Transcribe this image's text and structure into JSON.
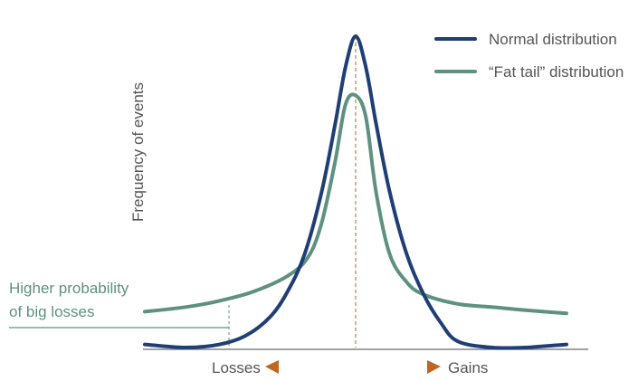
{
  "chart_data": {
    "type": "line",
    "title": "",
    "xlabel": "",
    "ylabel": "Frequency of events",
    "grid": false,
    "legend_position": "top-right",
    "x_axis_labels": {
      "left": "Losses",
      "right": "Gains"
    },
    "annotation": {
      "line1": "Higher probability",
      "line2": "of big losses"
    },
    "series": [
      {
        "name": "Normal distribution",
        "color": "#1f3f74",
        "values": [
          [
            -3.1,
            0.01
          ],
          [
            -2.5,
            0.0
          ],
          [
            -2.0,
            0.01
          ],
          [
            -1.6,
            0.04
          ],
          [
            -1.25,
            0.1
          ],
          [
            -1.0,
            0.18
          ],
          [
            -0.75,
            0.3
          ],
          [
            -0.5,
            0.5
          ],
          [
            -0.3,
            0.72
          ],
          [
            -0.15,
            0.9
          ],
          [
            0.0,
            1.0
          ],
          [
            0.15,
            0.9
          ],
          [
            0.3,
            0.72
          ],
          [
            0.5,
            0.5
          ],
          [
            0.75,
            0.3
          ],
          [
            1.0,
            0.17
          ],
          [
            1.25,
            0.08
          ],
          [
            1.5,
            0.02
          ],
          [
            2.0,
            0.0
          ],
          [
            2.5,
            0.0
          ],
          [
            3.1,
            0.01
          ]
        ]
      },
      {
        "name": "“Fat tail” distribution",
        "color": "#5e9180",
        "values": [
          [
            -3.1,
            0.115
          ],
          [
            -2.5,
            0.13
          ],
          [
            -2.0,
            0.15
          ],
          [
            -1.5,
            0.18
          ],
          [
            -1.0,
            0.23
          ],
          [
            -0.7,
            0.29
          ],
          [
            -0.5,
            0.4
          ],
          [
            -0.3,
            0.6
          ],
          [
            -0.15,
            0.78
          ],
          [
            0.0,
            0.81
          ],
          [
            0.15,
            0.74
          ],
          [
            0.3,
            0.5
          ],
          [
            0.5,
            0.3
          ],
          [
            0.75,
            0.21
          ],
          [
            1.0,
            0.17
          ],
          [
            1.5,
            0.14
          ],
          [
            2.0,
            0.13
          ],
          [
            2.5,
            0.12
          ],
          [
            3.1,
            0.11
          ]
        ]
      }
    ],
    "xlim": [
      -3.1,
      3.1
    ],
    "ylim": [
      0,
      1.0
    ],
    "colors": {
      "axis": "#6b6b6b",
      "arrow": "#c0661e",
      "center_line": "#b5651d",
      "text": "#555555"
    }
  }
}
